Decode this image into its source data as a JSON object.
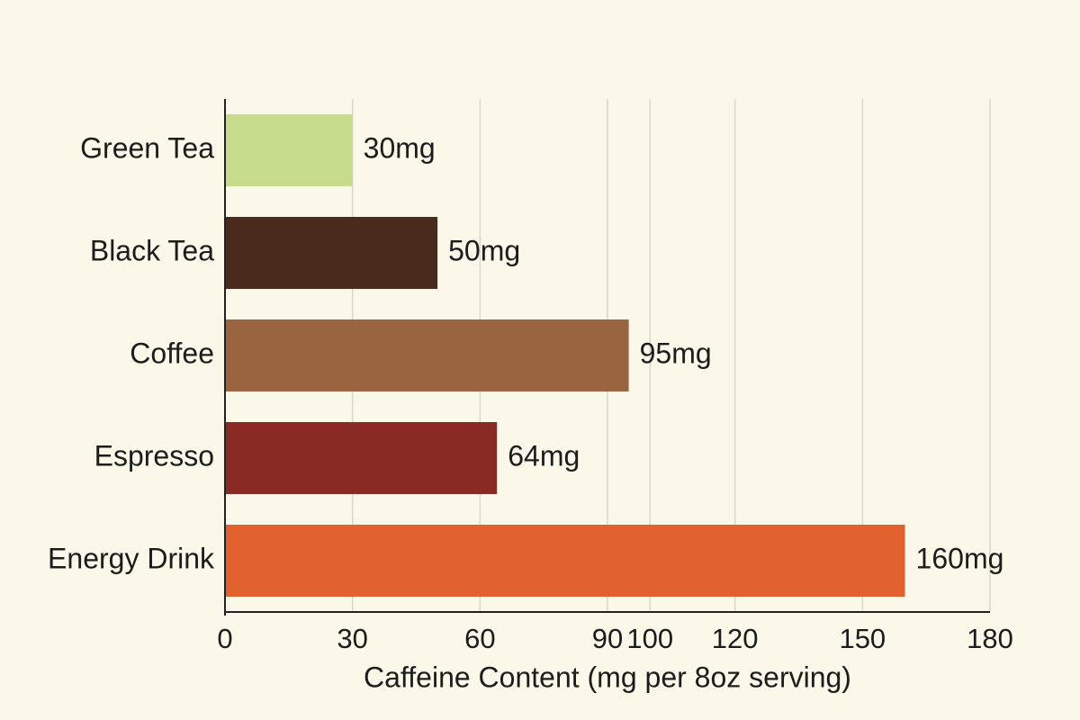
{
  "chart_data": {
    "type": "hbar",
    "categories": [
      "Green Tea",
      "Black Tea",
      "Coffee",
      "Espresso",
      "Energy Drink"
    ],
    "values": [
      30,
      50,
      95,
      64,
      160
    ],
    "value_labels": [
      "30mg",
      "50mg",
      "95mg",
      "64mg",
      "160mg"
    ],
    "colors": [
      "#c6dc8c",
      "#4a2a1c",
      "#9a6440",
      "#8a2a25",
      "#e2622f"
    ],
    "xlabel": "Caffeine Content (mg per 8oz serving)",
    "xlim": [
      0,
      180
    ],
    "xticks": [
      0,
      30,
      60,
      90,
      100,
      120,
      150,
      180
    ],
    "grid": true
  }
}
